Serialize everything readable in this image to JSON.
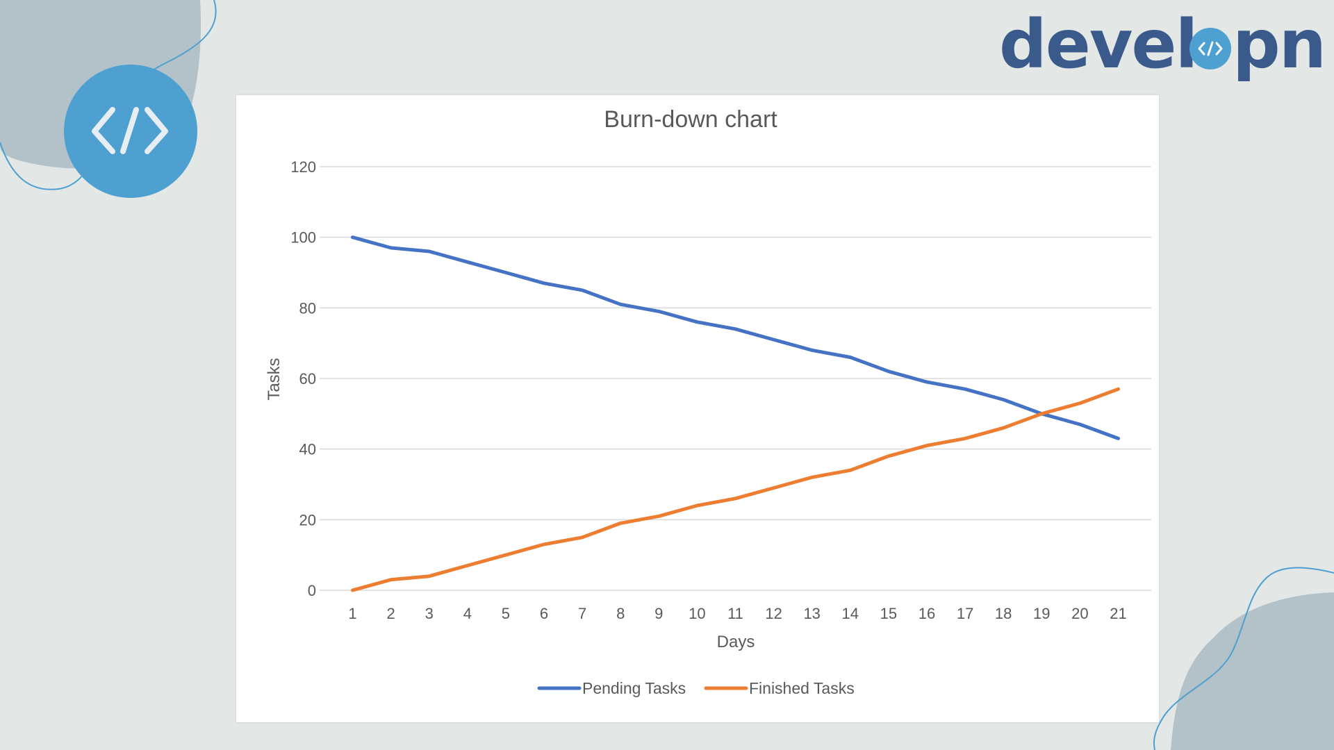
{
  "brand": {
    "name_left": "devel",
    "name_right": "pn",
    "logo_icon": "code-brackets-icon"
  },
  "colors": {
    "background": "#e3e7e6",
    "blob": "#b3c1c9",
    "badge": "#4ea0d0",
    "brand_text": "#3a5a8c",
    "pending": "#4472c4",
    "finished": "#ed7d31"
  },
  "chart_data": {
    "type": "line",
    "title": "Burn-down chart",
    "xlabel": "Days",
    "ylabel": "Tasks",
    "x": [
      1,
      2,
      3,
      4,
      5,
      6,
      7,
      8,
      9,
      10,
      11,
      12,
      13,
      14,
      15,
      16,
      17,
      18,
      19,
      20,
      21
    ],
    "ylim": [
      0,
      120
    ],
    "yticks": [
      0,
      20,
      40,
      60,
      80,
      100,
      120
    ],
    "grid": true,
    "legend_position": "bottom",
    "series": [
      {
        "name": "Pending Tasks",
        "color": "#4472c4",
        "values": [
          100,
          97,
          96,
          93,
          90,
          87,
          85,
          81,
          79,
          76,
          74,
          71,
          68,
          66,
          62,
          59,
          57,
          54,
          50,
          47,
          43
        ]
      },
      {
        "name": "Finished Tasks",
        "color": "#ed7d31",
        "values": [
          0,
          3,
          4,
          7,
          10,
          13,
          15,
          19,
          21,
          24,
          26,
          29,
          32,
          34,
          38,
          41,
          43,
          46,
          50,
          53,
          57
        ]
      }
    ]
  }
}
